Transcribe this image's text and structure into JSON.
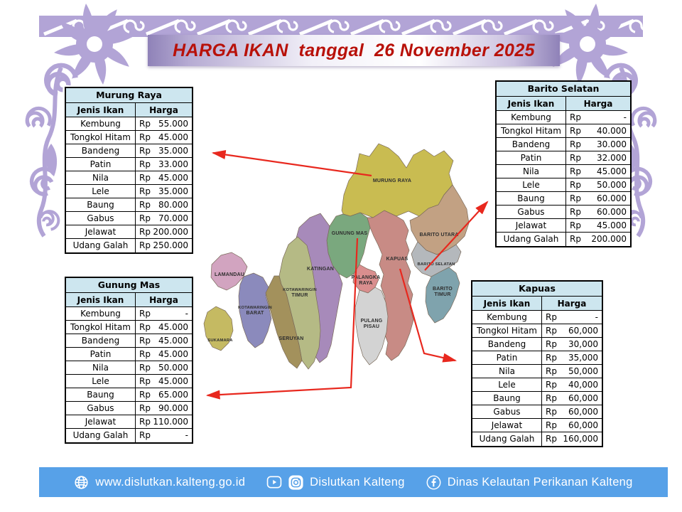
{
  "title": "HARGA IKAN  tanggal  26 November 2025",
  "tables": {
    "murung_raya": {
      "title": "Murung Raya",
      "columns": {
        "fish": "Jenis Ikan",
        "price": "Harga"
      },
      "rows": [
        {
          "fish": "Kembung",
          "currency": "Rp",
          "amount": "55.000"
        },
        {
          "fish": "Tongkol Hitam",
          "currency": "Rp",
          "amount": "45.000"
        },
        {
          "fish": "Bandeng",
          "currency": "Rp",
          "amount": "35.000"
        },
        {
          "fish": "Patin",
          "currency": "Rp",
          "amount": "33.000"
        },
        {
          "fish": "Nila",
          "currency": "Rp",
          "amount": "45.000"
        },
        {
          "fish": "Lele",
          "currency": "Rp",
          "amount": "35.000"
        },
        {
          "fish": "Baung",
          "currency": "Rp",
          "amount": "80.000"
        },
        {
          "fish": "Gabus",
          "currency": "Rp",
          "amount": "70.000"
        },
        {
          "fish": "Jelawat",
          "currency": "Rp",
          "amount": "200.000"
        },
        {
          "fish": "Udang Galah",
          "currency": "Rp",
          "amount": "250.000"
        }
      ]
    },
    "barito_selatan": {
      "title": "Barito Selatan",
      "columns": {
        "fish": "Jenis Ikan",
        "price": "Harga"
      },
      "rows": [
        {
          "fish": "Kembung",
          "currency": "Rp",
          "amount": "-"
        },
        {
          "fish": "Tongkol Hitam",
          "currency": "Rp",
          "amount": "40.000"
        },
        {
          "fish": "Bandeng",
          "currency": "Rp",
          "amount": "30.000"
        },
        {
          "fish": "Patin",
          "currency": "Rp",
          "amount": "32.000"
        },
        {
          "fish": "Nila",
          "currency": "Rp",
          "amount": "45.000"
        },
        {
          "fish": "Lele",
          "currency": "Rp",
          "amount": "50.000"
        },
        {
          "fish": "Baung",
          "currency": "Rp",
          "amount": "60.000"
        },
        {
          "fish": "Gabus",
          "currency": "Rp",
          "amount": "60.000"
        },
        {
          "fish": "Jelawat",
          "currency": "Rp",
          "amount": "45.000"
        },
        {
          "fish": "Udang Galah",
          "currency": "Rp",
          "amount": "200.000"
        }
      ]
    },
    "gunung_mas": {
      "title": "Gunung Mas",
      "columns": {
        "fish": "Jenis Ikan",
        "price": "Harga"
      },
      "rows": [
        {
          "fish": "Kembung",
          "currency": "Rp",
          "amount": "-"
        },
        {
          "fish": "Tongkol Hitam",
          "currency": "Rp",
          "amount": "45.000"
        },
        {
          "fish": "Bandeng",
          "currency": "Rp",
          "amount": "45.000"
        },
        {
          "fish": "Patin",
          "currency": "Rp",
          "amount": "45.000"
        },
        {
          "fish": "Nila",
          "currency": "Rp",
          "amount": "50.000"
        },
        {
          "fish": "Lele",
          "currency": "Rp",
          "amount": "45.000"
        },
        {
          "fish": "Baung",
          "currency": "Rp",
          "amount": "65.000"
        },
        {
          "fish": "Gabus",
          "currency": "Rp",
          "amount": "90.000"
        },
        {
          "fish": "Jelawat",
          "currency": "Rp",
          "amount": "110.000"
        },
        {
          "fish": "Udang Galah",
          "currency": "Rp",
          "amount": "-"
        }
      ]
    },
    "kapuas": {
      "title": "Kapuas",
      "columns": {
        "fish": "Jenis Ikan",
        "price": "Harga"
      },
      "rows": [
        {
          "fish": "Kembung",
          "currency": "Rp",
          "amount": "-"
        },
        {
          "fish": "Tongkol Hitam",
          "currency": "Rp",
          "amount": "60,000"
        },
        {
          "fish": "Bandeng",
          "currency": "Rp",
          "amount": "30,000"
        },
        {
          "fish": "Patin",
          "currency": "Rp",
          "amount": "35,000"
        },
        {
          "fish": "Nila",
          "currency": "Rp",
          "amount": "50,000"
        },
        {
          "fish": "Lele",
          "currency": "Rp",
          "amount": "40,000"
        },
        {
          "fish": "Baung",
          "currency": "Rp",
          "amount": "60,000"
        },
        {
          "fish": "Gabus",
          "currency": "Rp",
          "amount": "60,000"
        },
        {
          "fish": "Jelawat",
          "currency": "Rp",
          "amount": "60,000"
        },
        {
          "fish": "Udang Galah",
          "currency": "Rp",
          "amount": "160,000"
        }
      ]
    }
  },
  "map": {
    "regions": {
      "murung_raya": {
        "label": "MURUNG RAYA",
        "color": "#c9bc51"
      },
      "barito_utara": {
        "label": "BARITO UTARA",
        "color": "#c2a183"
      },
      "gunung_mas": {
        "label": "GUNUNG MAS",
        "color": "#7aa87e"
      },
      "kapuas": {
        "label": "KAPUAS",
        "color": "#c88b85"
      },
      "barito_selatan": {
        "label": "BARITO SELATAN",
        "color": "#b4b8bc"
      },
      "barito_timur": {
        "label1": "BARITO",
        "label2": "TIMUR",
        "color": "#7fa3ad"
      },
      "katingan": {
        "label": "KATINGAN",
        "color": "#a78aba"
      },
      "palangka_raya": {
        "label1": "PALANGKA",
        "label2": "RAYA",
        "color": "#d98e8e"
      },
      "pulang_pisau": {
        "label1": "PULANG",
        "label2": "PISAU",
        "color": "#d3d3d3"
      },
      "lamandau": {
        "label": "LAMANDAU",
        "color": "#d2a4c0"
      },
      "kotawaringin_barat": {
        "label1": "KOTAWARINGIN",
        "label2": "BARAT",
        "color": "#8b8abc"
      },
      "kotawaringin_timur": {
        "label1": "KOTAWARINGIN",
        "label2": "TIMUR",
        "color": "#b5ba85"
      },
      "seruyan": {
        "label": "SERUYAN",
        "color": "#a3915c"
      },
      "sukamara": {
        "label": "SUKAMARA",
        "color": "#c5ba62"
      }
    }
  },
  "footer": {
    "website": "www.dislutkan.kalteng.go.id",
    "social_handle": "Dislutkan Kalteng",
    "facebook_page": "Dinas Kelautan Perikanan Kalteng"
  },
  "colors": {
    "arrow": "#e8281e",
    "title_text": "#b81109",
    "table_header_bg": "#cde6ef",
    "footer_bg": "#57a1e8",
    "ornament": "#b2a4d6",
    "banner_purple": "#8f82b8"
  }
}
